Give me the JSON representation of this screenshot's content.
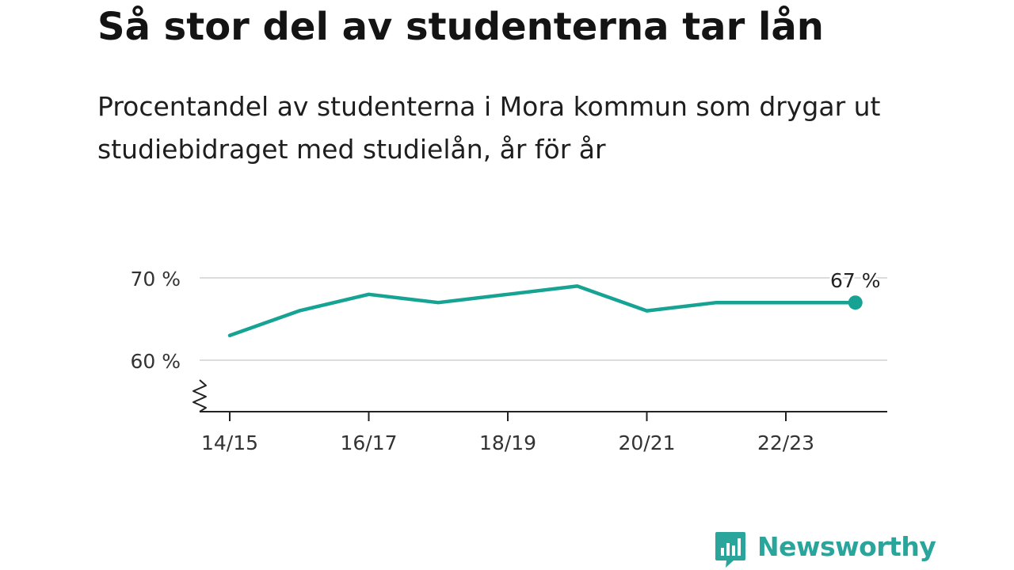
{
  "header": {
    "title": "Så stor del av studenterna tar lån",
    "subtitle": "Procentandel av studenterna i Mora kommun som drygar ut studiebidraget med studielån, år för år"
  },
  "chart_data": {
    "type": "line",
    "x": [
      "14/15",
      "15/16",
      "16/17",
      "17/18",
      "18/19",
      "19/20",
      "20/21",
      "21/22",
      "22/23",
      "23/24"
    ],
    "series": [
      {
        "values": [
          63,
          66,
          68,
          67,
          68,
          69,
          66,
          67,
          67,
          67
        ]
      }
    ],
    "x_tick_labels": [
      "14/15",
      "16/17",
      "18/19",
      "20/21",
      "22/23"
    ],
    "y_tick_labels": [
      "60 %",
      "70 %"
    ],
    "y_ticks": [
      60,
      70
    ],
    "end_label": "67 %",
    "axis_break": true,
    "grid": true,
    "line_color": "#16a394",
    "xlabel": "",
    "ylabel": ""
  },
  "brand": {
    "logo_text": "Newsworthy",
    "logo_icon": "bar-chart-speech-bubble-icon",
    "color": "#2aa59b"
  }
}
